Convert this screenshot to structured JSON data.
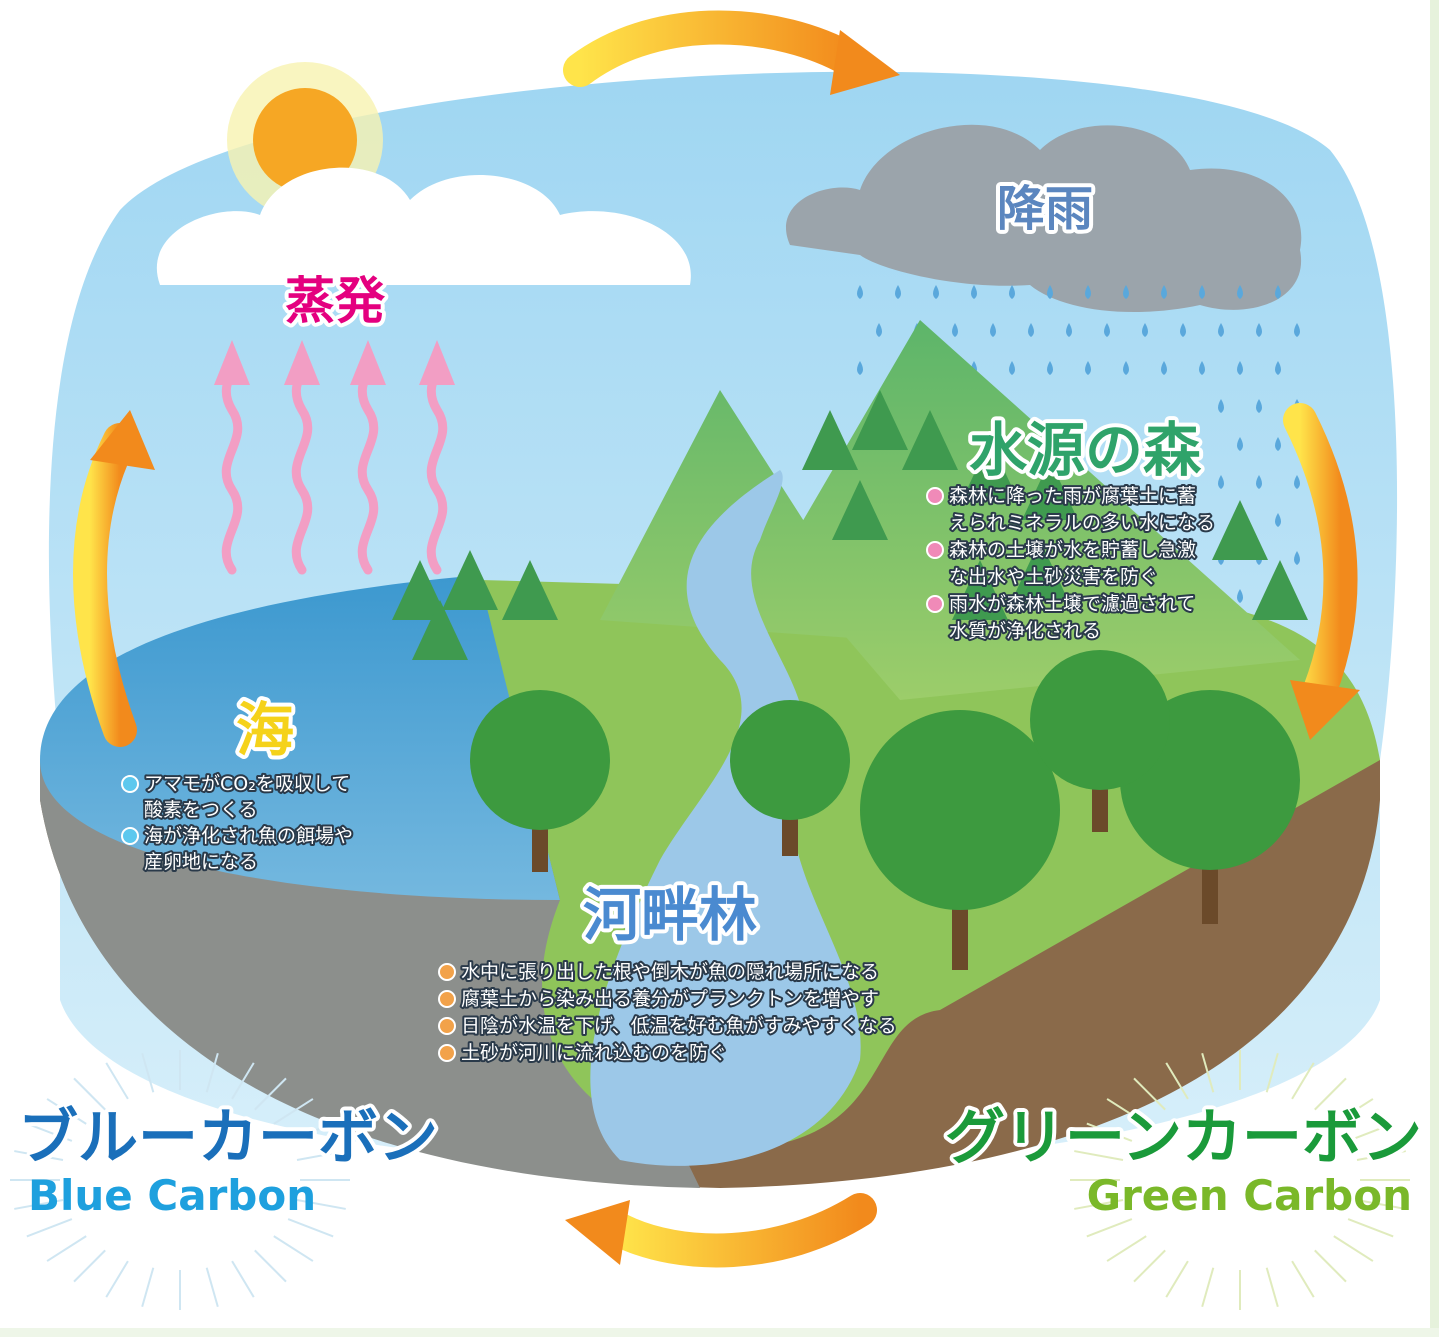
{
  "evaporation": {
    "label": "蒸発"
  },
  "rainfall": {
    "label": "降雨"
  },
  "sections": [
    {
      "title": "水源の森",
      "bullets": [
        [
          "森林に降った雨が腐葉土に蓄",
          "えられミネラルの多い水になる"
        ],
        [
          "森林の土壌が水を貯蓄し急激",
          "な出水や土砂災害を防ぐ"
        ],
        [
          "雨水が森林土壌で濾過されて",
          "水質が浄化される"
        ]
      ]
    },
    {
      "title": "海",
      "bullets": [
        [
          "アマモがCO₂を吸収して",
          "酸素をつくる"
        ],
        [
          "海が浄化され魚の餌場や",
          "産卵地になる"
        ]
      ]
    },
    {
      "title": "河畔林",
      "bullets": [
        [
          "水中に張り出した根や倒木が魚の隠れ場所になる"
        ],
        [
          "腐葉土から染み出る養分がプランクトンを増やす"
        ],
        [
          "日陰が水温を下げ、低温を好む魚がすみやすくなる"
        ],
        [
          "土砂が河川に流れ込むのを防ぐ"
        ]
      ]
    }
  ],
  "carbon": [
    {
      "ja": "ブルーカーボン",
      "en": "Blue Carbon"
    },
    {
      "ja": "グリーンカーボン",
      "en": "Green Carbon"
    }
  ]
}
